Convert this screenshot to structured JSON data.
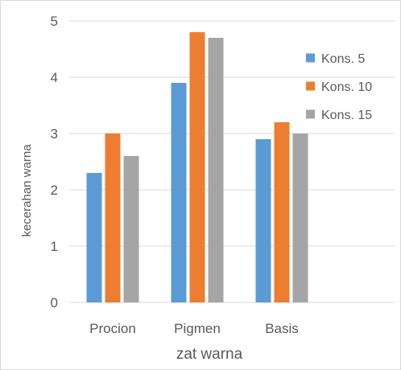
{
  "chart_data": {
    "type": "bar",
    "categories": [
      "Procion",
      "Pigmen",
      "Basis"
    ],
    "series": [
      {
        "name": "Kons. 5",
        "values": [
          2.3,
          3.9,
          2.9
        ],
        "color": "#5b9bd5"
      },
      {
        "name": "Kons. 10",
        "values": [
          3.0,
          4.8,
          3.2
        ],
        "color": "#ed7d31"
      },
      {
        "name": "Kons. 15",
        "values": [
          2.6,
          4.7,
          3.0
        ],
        "color": "#a5a5a5"
      }
    ],
    "xlabel": "zat warna",
    "ylabel": "kecerahan warna",
    "ylim": [
      0,
      5
    ],
    "yticks": [
      "0",
      "1",
      "2",
      "3",
      "4",
      "5"
    ],
    "grid": true,
    "legend_position": "top-right"
  }
}
